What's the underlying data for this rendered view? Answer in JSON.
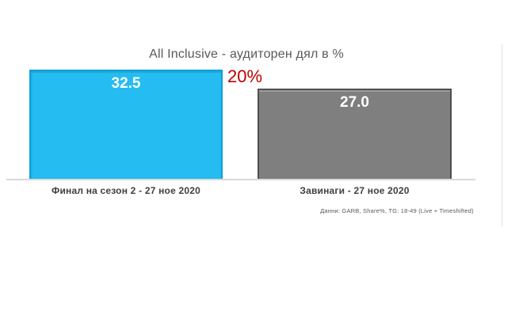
{
  "chart_data": {
    "type": "bar",
    "title": "All Inclusive - аудиторен дял в %",
    "categories": [
      "Финал на сезон 2 - 27 ное 2020",
      "Завинаги - 27 ное 2020"
    ],
    "values": [
      32.5,
      27.0
    ],
    "value_labels": [
      "32.5",
      "27.0"
    ],
    "bar_colors": [
      "#24bcf1",
      "#7f7f7f"
    ],
    "bar_border_colors": [
      "#0d9fd8",
      "#4f4f4f"
    ],
    "value_label_color": "#ffffff",
    "annotation": {
      "text": "20%",
      "color": "#c00000"
    },
    "footnote": "Данни: GARB, Share%, TG: 18-49 (Live + Timeshifted)",
    "xlabel": "",
    "ylabel": "",
    "ylim": [
      0,
      32.5
    ],
    "grid": false,
    "legend": false,
    "baseline_color": "#d9d9d9"
  }
}
